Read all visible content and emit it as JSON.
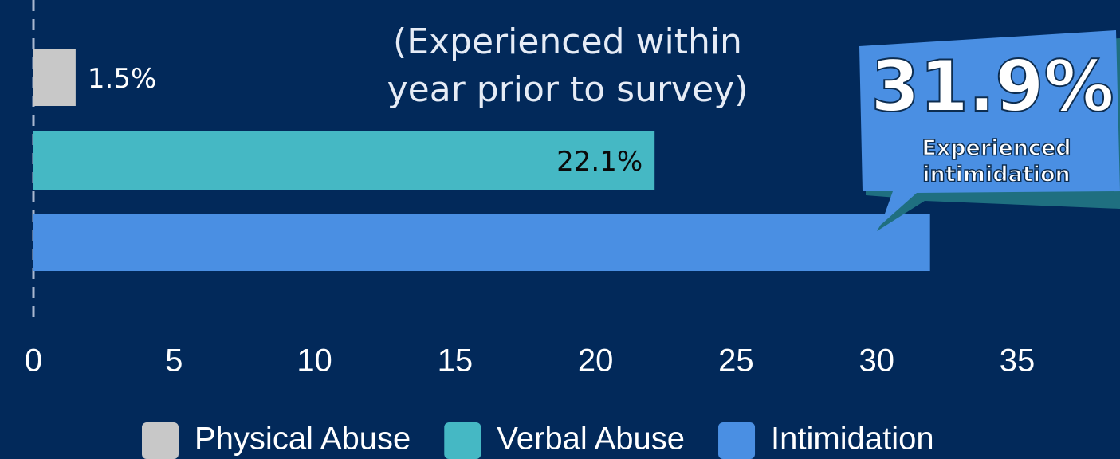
{
  "chart_data": {
    "type": "bar",
    "orientation": "horizontal",
    "annotation": [
      "(Experienced within",
      "year prior to survey)"
    ],
    "callout": {
      "value": "31.9%",
      "text": [
        "Experienced",
        "intimidation"
      ]
    },
    "series": [
      {
        "name": "Physical Abuse",
        "color": "#c8c8c8",
        "values": [
          1.5
        ],
        "value_labels": [
          "1.5%"
        ]
      },
      {
        "name": "Verbal Abuse",
        "color": "#45b8c4",
        "values": [
          22.1
        ],
        "value_labels": [
          "22.1%"
        ]
      },
      {
        "name": "Intimidation",
        "color": "#4a8fe3",
        "values": [
          31.9
        ]
      }
    ],
    "xlim": [
      0,
      35
    ],
    "xticks": [
      0,
      5,
      10,
      15,
      20,
      25,
      30,
      35
    ]
  }
}
